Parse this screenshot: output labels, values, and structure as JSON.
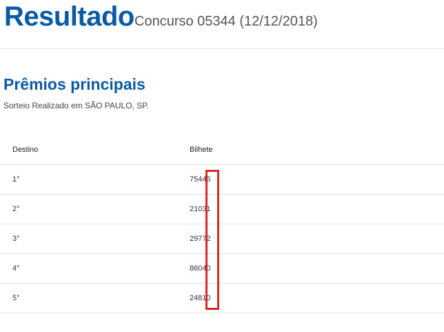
{
  "header": {
    "title": "Resultado",
    "subtitle": "Concurso 05344 (12/12/2018)"
  },
  "section": {
    "title": "Prêmios principais",
    "subtitle": "Sorteio Realizado em SÃO PAULO, SP."
  },
  "table": {
    "columns": [
      "Destino",
      "Bilhete"
    ],
    "rows": [
      [
        "1°",
        "75445"
      ],
      [
        "2°",
        "21031"
      ],
      [
        "3°",
        "29772"
      ],
      [
        "4°",
        "86040"
      ],
      [
        "5°",
        "24810"
      ]
    ]
  }
}
